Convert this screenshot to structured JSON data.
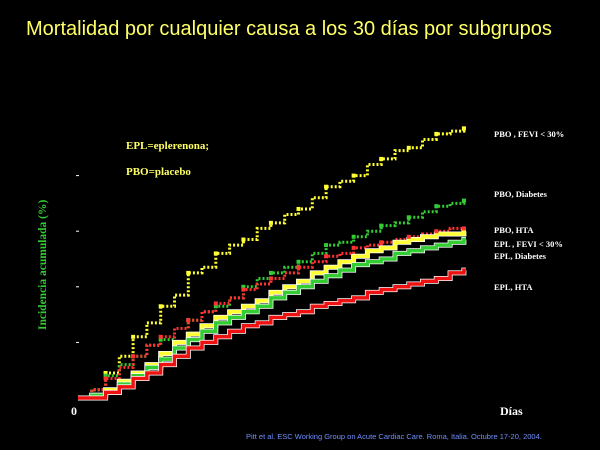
{
  "title": "Mortalidad por cualquier causa a los 30 días por subgrupos",
  "notes": {
    "epl": "EPL=eplerenona;",
    "pbo": "PBO=placebo"
  },
  "citation": "Pitt et al. ESC Working Group on Acute Cardiac Care. Roma, Italia. Octubre 17-20, 2004.",
  "colors": {
    "background": "#000000",
    "title": "#ffff66",
    "ylabel": "#33cc33",
    "citation": "#6f8fff"
  },
  "chart_data": {
    "type": "line",
    "step": true,
    "title": "Mortalidad por cualquier causa a los 30 días por subgrupos",
    "xlabel": "Días",
    "ylabel": "Incidencia acumulada (%)",
    "x_tick_zero": "0",
    "xlim": [
      0,
      30
    ],
    "ylim": [
      0,
      10
    ],
    "y_ticks_unlabeled": [
      2,
      4,
      6,
      8
    ],
    "grid": false,
    "series": [
      {
        "name": "PBO , FEVI < 30%",
        "color": "#ffff33",
        "dashed": true,
        "markers": true,
        "x": [
          0,
          1,
          2,
          3,
          4,
          5,
          6,
          7,
          8,
          9,
          10,
          11,
          12,
          13,
          14,
          15,
          16,
          17,
          18,
          19,
          20,
          21,
          22,
          23,
          24,
          25,
          26,
          27,
          28
        ],
        "y": [
          0,
          0.3,
          0.9,
          1.5,
          2.2,
          2.7,
          3.3,
          3.7,
          4.5,
          4.7,
          5.2,
          5.5,
          5.7,
          6.1,
          6.3,
          6.6,
          6.8,
          7.2,
          7.6,
          7.8,
          8.0,
          8.4,
          8.6,
          8.9,
          9.0,
          9.3,
          9.5,
          9.6,
          9.7
        ]
      },
      {
        "name": "PBO, Diabetes",
        "color": "#33cc33",
        "dashed": true,
        "markers": true,
        "x": [
          0,
          1,
          2,
          3,
          4,
          5,
          6,
          7,
          8,
          9,
          10,
          11,
          12,
          13,
          14,
          15,
          16,
          17,
          18,
          19,
          20,
          21,
          22,
          23,
          24,
          25,
          26,
          27,
          28
        ],
        "y": [
          0,
          0.3,
          0.8,
          1.2,
          1.5,
          1.9,
          2.1,
          2.5,
          2.8,
          3.1,
          3.3,
          3.6,
          4.0,
          4.3,
          4.5,
          4.7,
          4.9,
          5.2,
          5.5,
          5.6,
          5.8,
          6.0,
          6.2,
          6.3,
          6.5,
          6.7,
          6.9,
          7.0,
          7.1
        ]
      },
      {
        "name": "PBO, HTA",
        "color": "#ff3333",
        "dashed": true,
        "markers": true,
        "x": [
          0,
          1,
          2,
          3,
          4,
          5,
          6,
          7,
          8,
          9,
          10,
          11,
          12,
          13,
          14,
          15,
          16,
          17,
          18,
          19,
          20,
          21,
          22,
          23,
          24,
          25,
          26,
          27,
          28
        ],
        "y": [
          0,
          0.3,
          0.7,
          1.1,
          1.5,
          1.9,
          2.2,
          2.5,
          2.8,
          3.1,
          3.4,
          3.6,
          3.9,
          4.1,
          4.3,
          4.5,
          4.7,
          4.9,
          5.1,
          5.2,
          5.4,
          5.5,
          5.6,
          5.7,
          5.8,
          5.9,
          6.0,
          6.1,
          6.1
        ]
      },
      {
        "name": "EPL , FEVI < 30%",
        "color": "#ffff33",
        "dashed": false,
        "markers": false,
        "x": [
          0,
          1,
          2,
          3,
          4,
          5,
          6,
          7,
          8,
          9,
          10,
          11,
          12,
          13,
          14,
          15,
          16,
          17,
          18,
          19,
          20,
          21,
          22,
          23,
          24,
          25,
          26,
          27,
          28
        ],
        "y": [
          0,
          0.1,
          0.3,
          0.6,
          0.9,
          1.2,
          1.6,
          2.0,
          2.3,
          2.6,
          2.9,
          3.1,
          3.3,
          3.5,
          3.8,
          4.0,
          4.2,
          4.5,
          4.7,
          4.9,
          5.1,
          5.3,
          5.4,
          5.6,
          5.7,
          5.8,
          5.9,
          5.9,
          6.0
        ]
      },
      {
        "name": "EPL, Diabetes",
        "color": "#33cc33",
        "dashed": false,
        "markers": false,
        "x": [
          0,
          1,
          2,
          3,
          4,
          5,
          6,
          7,
          8,
          9,
          10,
          11,
          12,
          13,
          14,
          15,
          16,
          17,
          18,
          19,
          20,
          21,
          22,
          23,
          24,
          25,
          26,
          27,
          28
        ],
        "y": [
          0,
          0.1,
          0.2,
          0.5,
          0.8,
          1.1,
          1.4,
          1.8,
          2.1,
          2.4,
          2.7,
          2.9,
          3.1,
          3.3,
          3.6,
          3.8,
          4.0,
          4.2,
          4.4,
          4.6,
          4.8,
          4.9,
          5.0,
          5.2,
          5.3,
          5.4,
          5.5,
          5.6,
          5.7
        ]
      },
      {
        "name": "EPL, HTA",
        "color": "#ee1111",
        "dashed": false,
        "markers": false,
        "x": [
          0,
          1,
          2,
          3,
          4,
          5,
          6,
          7,
          8,
          9,
          10,
          11,
          12,
          13,
          14,
          15,
          16,
          17,
          18,
          19,
          20,
          21,
          22,
          23,
          24,
          25,
          26,
          27,
          28
        ],
        "y": [
          0,
          0.0,
          0.2,
          0.4,
          0.7,
          0.9,
          1.2,
          1.5,
          1.8,
          2.0,
          2.2,
          2.4,
          2.6,
          2.7,
          2.9,
          3.0,
          3.1,
          3.3,
          3.4,
          3.5,
          3.6,
          3.8,
          3.9,
          4.0,
          4.1,
          4.2,
          4.3,
          4.5,
          4.6
        ]
      }
    ]
  }
}
